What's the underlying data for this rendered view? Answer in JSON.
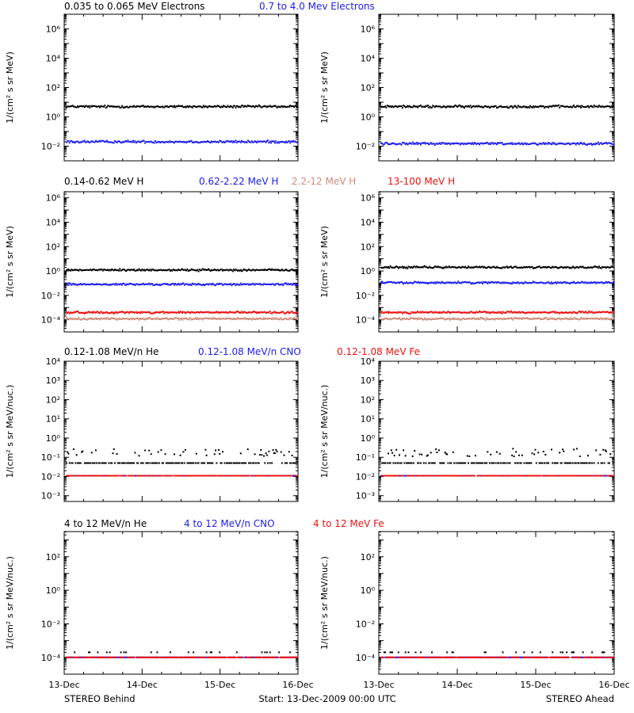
{
  "chart_data": {
    "type": "scatter",
    "xlabel": "",
    "x_ticks": [
      "13-Dec",
      "14-Dec",
      "15-Dec",
      "16-Dec"
    ],
    "x_range": [
      "13-Dec-2009 00:00",
      "16-Dec-2009 00:00"
    ],
    "footer": {
      "left": "STEREO Behind",
      "center": "Start: 13-Dec-2009 00:00 UTC",
      "right": "STEREO Ahead"
    },
    "colors": {
      "black": "#000000",
      "blue": "#1c1cf0",
      "red": "#ee1111",
      "salmon": "#d08a78"
    },
    "rows": [
      {
        "id": "electrons",
        "ylabel": "1/(cm² s sr MeV)",
        "log_yrange": [
          -3,
          7
        ],
        "y_ticks": [
          {
            "exp": "-2",
            "label": "10⁻²"
          },
          {
            "exp": "0",
            "label": "10⁰"
          },
          {
            "exp": "2",
            "label": "10²"
          },
          {
            "exp": "4",
            "label": "10⁴"
          },
          {
            "exp": "6",
            "label": "10⁶"
          }
        ],
        "legend": [
          {
            "text": "0.035 to 0.065 MeV Electrons",
            "color": "#000000"
          },
          {
            "text": "0.7 to 4.0 Mev Electrons",
            "color": "#1c1cf0"
          }
        ],
        "series": [
          {
            "name": "0.035 to 0.065 MeV Electrons",
            "color": "#000000",
            "behind": 5.0,
            "ahead": 5.0
          },
          {
            "name": "0.7 to 4.0 Mev Electrons",
            "color": "#1c1cf0",
            "behind": 0.02,
            "ahead": 0.015
          }
        ]
      },
      {
        "id": "protons",
        "ylabel": "1/(cm² s sr MeV)",
        "log_yrange": [
          -5,
          6.5
        ],
        "y_ticks": [
          {
            "exp": "-4",
            "label": "10⁻⁴"
          },
          {
            "exp": "-2",
            "label": "10⁻²"
          },
          {
            "exp": "0",
            "label": "10⁰"
          },
          {
            "exp": "2",
            "label": "10²"
          },
          {
            "exp": "4",
            "label": "10⁴"
          },
          {
            "exp": "6",
            "label": "10⁶"
          }
        ],
        "legend": [
          {
            "text": "0.14-0.62 MeV H",
            "color": "#000000"
          },
          {
            "text": "0.62-2.22 MeV H",
            "color": "#1c1cf0"
          },
          {
            "text": "2.2-12 MeV H",
            "color": "#d08a78"
          },
          {
            "text": "13-100 MeV H",
            "color": "#ee1111"
          }
        ],
        "series": [
          {
            "name": "0.14-0.62 MeV H",
            "color": "#000000",
            "behind": 1.2,
            "ahead": 2.0
          },
          {
            "name": "0.62-2.22 MeV H",
            "color": "#1c1cf0",
            "behind": 0.08,
            "ahead": 0.11
          },
          {
            "name": "2.2-12 MeV H",
            "color": "#d08a78",
            "behind": 0.00012,
            "ahead": 0.00012
          },
          {
            "name": "13-100 MeV H",
            "color": "#ee1111",
            "behind": 0.0004,
            "ahead": 0.0004
          }
        ]
      },
      {
        "id": "heavy-low",
        "ylabel": "1/(cm² s sr MeV/nuc.)",
        "log_yrange": [
          -3.3,
          4
        ],
        "y_ticks": [
          {
            "exp": "-3",
            "label": "10⁻³"
          },
          {
            "exp": "-2",
            "label": "10⁻²"
          },
          {
            "exp": "-1",
            "label": "10⁻¹"
          },
          {
            "exp": "0",
            "label": "10⁰"
          },
          {
            "exp": "1",
            "label": "10¹"
          },
          {
            "exp": "2",
            "label": "10²"
          },
          {
            "exp": "3",
            "label": "10³"
          },
          {
            "exp": "4",
            "label": "10⁴"
          }
        ],
        "legend": [
          {
            "text": "0.12-1.08 MeV/n He",
            "color": "#000000"
          },
          {
            "text": "0.12-1.08 MeV/n CNO",
            "color": "#1c1cf0"
          },
          {
            "text": "0.12-1.08 MeV Fe",
            "color": "#ee1111"
          }
        ],
        "series": [
          {
            "name": "0.12-1.08 MeV/n He",
            "color": "#000000",
            "behind": 0.05,
            "ahead": 0.05
          },
          {
            "name": "0.12-1.08 MeV/n CNO",
            "color": "#1c1cf0",
            "behind": 0.011,
            "ahead": 0.011
          },
          {
            "name": "0.12-1.08 MeV Fe",
            "color": "#ee1111",
            "behind": 0.011,
            "ahead": 0.011
          }
        ]
      },
      {
        "id": "heavy-high",
        "ylabel": "1/(cm² s sr MeV/nuc.)",
        "log_yrange": [
          -5,
          3.5
        ],
        "y_ticks": [
          {
            "exp": "-4",
            "label": "10⁻⁴"
          },
          {
            "exp": "-2",
            "label": "10⁻²"
          },
          {
            "exp": "0",
            "label": "10⁰"
          },
          {
            "exp": "2",
            "label": "10²"
          }
        ],
        "legend": [
          {
            "text": "4 to 12 MeV/n He",
            "color": "#000000"
          },
          {
            "text": "4 to 12 MeV/n CNO",
            "color": "#1c1cf0"
          },
          {
            "text": "4 to 12 MeV Fe",
            "color": "#ee1111"
          }
        ],
        "series": [
          {
            "name": "4 to 12 MeV/n He",
            "color": "#000000",
            "behind": 0.0002,
            "ahead": 0.0002
          },
          {
            "name": "4 to 12 MeV/n CNO",
            "color": "#1c1cf0",
            "behind": 0.0001,
            "ahead": 0.0001
          },
          {
            "name": "4 to 12 MeV Fe",
            "color": "#ee1111",
            "behind": 0.0001,
            "ahead": 0.0001
          }
        ]
      }
    ]
  }
}
